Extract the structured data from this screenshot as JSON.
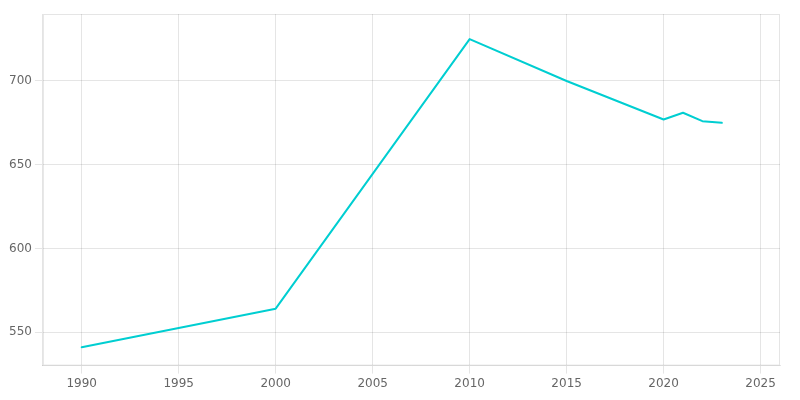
{
  "chart_data": {
    "type": "line",
    "x": [
      1990,
      2000,
      2010,
      2015,
      2020,
      2021,
      2022,
      2023
    ],
    "values": [
      541,
      564,
      725,
      700,
      677,
      681,
      676,
      675
    ],
    "color": "#00CED1",
    "xlim": [
      1988,
      2026
    ],
    "xticks": [
      1990,
      1995,
      2000,
      2005,
      2010,
      2015,
      2020,
      2025
    ],
    "ylim": [
      530,
      740
    ],
    "yticks": [
      550,
      600,
      650,
      700
    ],
    "grid": true
  }
}
